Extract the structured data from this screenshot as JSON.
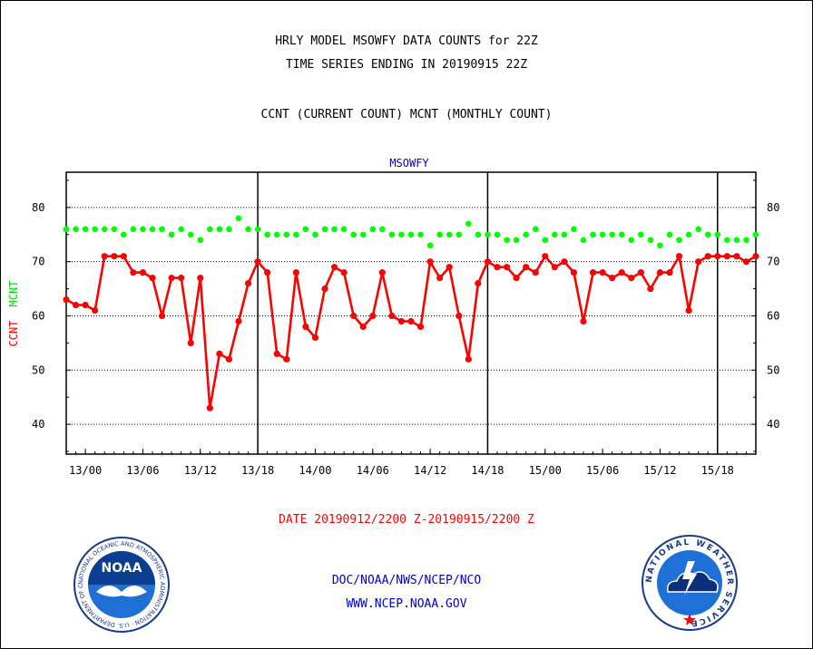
{
  "header": {
    "title_line1": "HRLY MODEL MSOWFY DATA COUNTS for 22Z",
    "title_line2": "TIME SERIES ENDING IN 20190915 22Z",
    "subtitle": "CCNT (CURRENT COUNT) MCNT (MONTHLY COUNT)"
  },
  "footer": {
    "date_range": "DATE 20190912/2200 Z-20190915/2200 Z",
    "org_line": "DOC/NOAA/NWS/NCEP/NCO",
    "url_line": "WWW.NCEP.NOAA.GOV"
  },
  "logos": {
    "noaa_text": "NOAA",
    "noaa_ring_text": "NATIONAL OCEANIC AND ATMOSPHERIC ADMINISTRATION · U.S. DEPARTMENT OF COMMERCE",
    "nws_ring_text": "NATIONAL WEATHER SERVICE"
  },
  "colors": {
    "ccnt": "#ff0000",
    "mcnt": "#00ff00",
    "title": "#000000",
    "plot_title": "#0000cc",
    "date_text": "#ff0000",
    "footer_text": "#0000cc"
  },
  "chart_data": {
    "type": "line",
    "title": "MSOWFY",
    "ylabel_ccnt": "CCNT",
    "ylabel_mcnt": "MCNT",
    "ylim": [
      34.5,
      86.5
    ],
    "yticks": [
      40,
      50,
      60,
      70,
      80
    ],
    "grid": true,
    "x_tick_labels": [
      "13/00",
      "13/06",
      "13/12",
      "13/18",
      "14/00",
      "14/06",
      "14/12",
      "14/18",
      "15/00",
      "15/06",
      "15/12",
      "15/18"
    ],
    "x_tick_hours": [
      2,
      8,
      14,
      20,
      26,
      32,
      38,
      44,
      50,
      56,
      62,
      68
    ],
    "day_boundary_hours": [
      20,
      44,
      68
    ],
    "x_range_hours": [
      0,
      72
    ],
    "x_note": "hours since 20190912 22Z",
    "series": [
      {
        "name": "CCNT",
        "color": "#ff0000",
        "values": [
          63,
          62,
          62,
          61,
          71,
          71,
          71,
          68,
          68,
          67,
          60,
          67,
          67,
          55,
          67,
          43,
          53,
          52,
          59,
          66,
          70,
          68,
          53,
          52,
          68,
          58,
          56,
          65,
          69,
          68,
          60,
          58,
          60,
          68,
          60,
          59,
          59,
          58,
          70,
          67,
          69,
          60,
          52,
          66,
          70,
          69,
          69,
          67,
          69,
          68,
          71,
          69,
          70,
          68,
          59,
          68,
          68,
          67,
          68,
          67,
          68,
          65,
          68,
          68,
          71,
          61,
          70,
          71,
          71,
          71,
          71,
          70,
          71
        ]
      },
      {
        "name": "MCNT",
        "color": "#00ff00",
        "values": [
          76,
          76,
          76,
          76,
          76,
          76,
          75,
          76,
          76,
          76,
          76,
          75,
          76,
          75,
          74,
          76,
          76,
          76,
          78,
          76,
          76,
          75,
          75,
          75,
          75,
          76,
          75,
          76,
          76,
          76,
          75,
          75,
          76,
          76,
          75,
          75,
          75,
          75,
          73,
          75,
          75,
          75,
          77,
          75,
          75,
          75,
          74,
          74,
          75,
          76,
          74,
          75,
          75,
          76,
          74,
          75,
          75,
          75,
          75,
          74,
          75,
          74,
          73,
          75,
          74,
          75,
          76,
          75,
          75,
          74,
          74,
          74,
          75
        ]
      }
    ]
  }
}
